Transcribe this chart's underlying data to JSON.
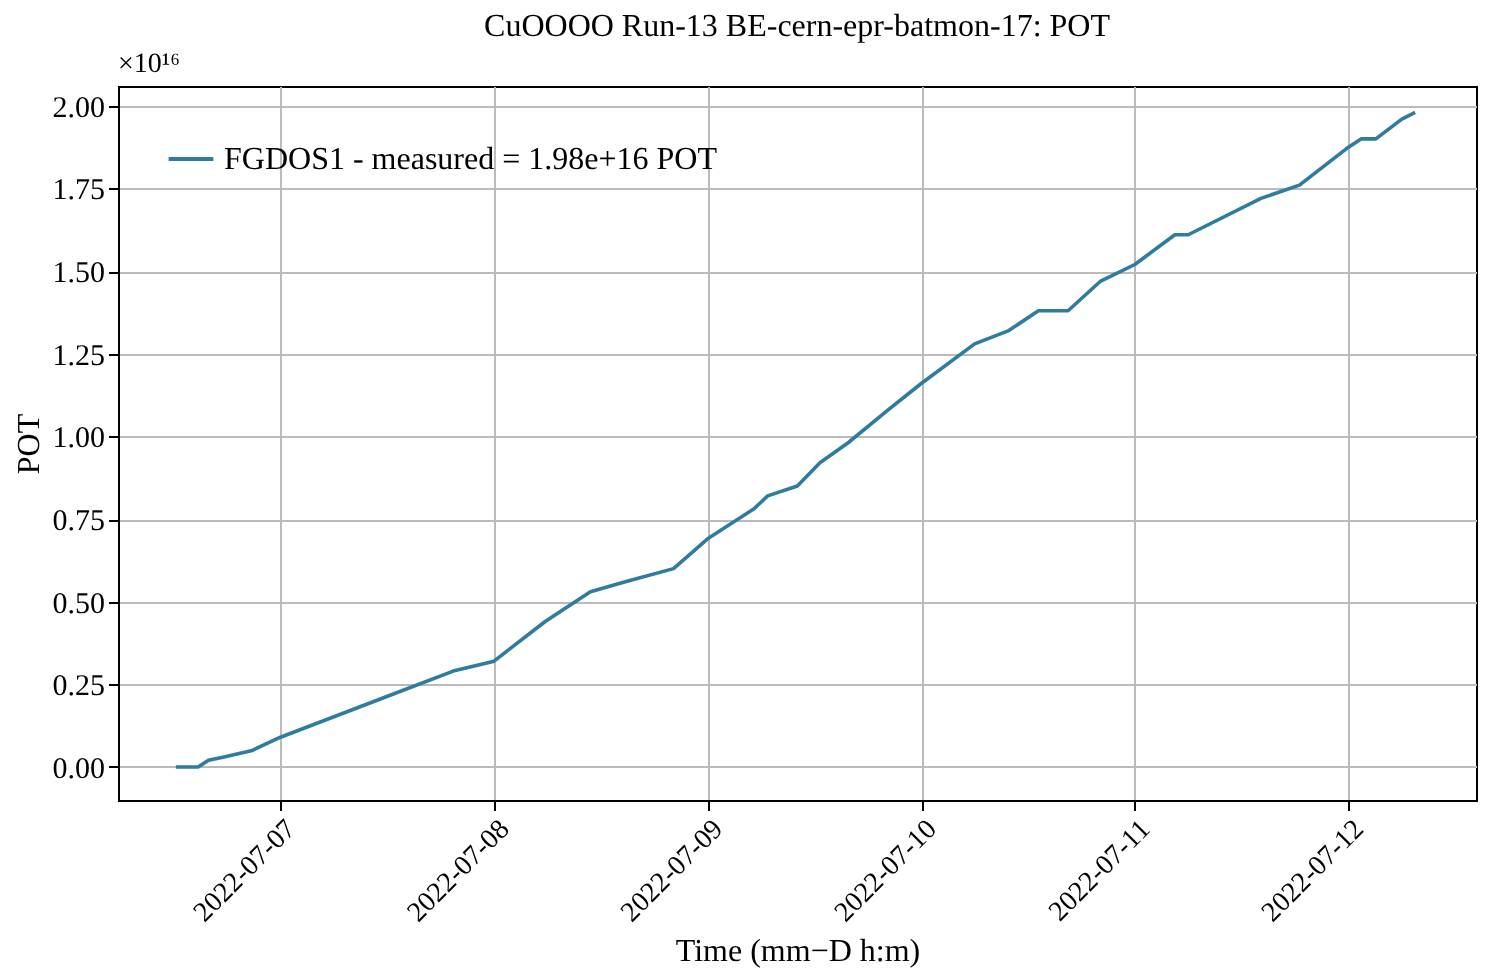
{
  "chart_data": {
    "type": "line",
    "title": "CuOOOO Run-13 BE-cern-epr-batmon-17: POT",
    "xlabel": "Time (mm−D h:m)",
    "ylabel": "POT",
    "annotations": [
      "×10¹⁶"
    ],
    "series": [
      {
        "name": "FGDOS1 - measured = 1.98e+16 POT",
        "color": "#2e7ca0",
        "x": [
          "2022-07-06T12:15",
          "2022-07-06T14:45",
          "2022-07-06T15:55",
          "2022-07-06T17:40",
          "2022-07-06T20:50",
          "2022-07-07T00:00",
          "2022-07-07T12:37",
          "2022-07-07T19:25",
          "2022-07-08T00:00",
          "2022-07-08T05:45",
          "2022-07-08T10:50",
          "2022-07-08T14:45",
          "2022-07-08T20:10",
          "2022-07-09T00:00",
          "2022-07-09T05:10",
          "2022-07-09T06:45",
          "2022-07-09T10:05",
          "2022-07-09T12:37",
          "2022-07-09T15:45",
          "2022-07-09T20:17",
          "2022-07-10T00:00",
          "2022-07-10T06:00",
          "2022-07-10T09:50",
          "2022-07-10T13:10",
          "2022-07-10T16:30",
          "2022-07-10T20:10",
          "2022-07-11T00:00",
          "2022-07-11T04:30",
          "2022-07-11T06:00",
          "2022-07-11T14:10",
          "2022-07-11T18:30",
          "2022-07-11T23:45",
          "2022-07-12T01:25",
          "2022-07-12T03:05",
          "2022-07-12T06:00",
          "2022-07-12T07:30"
        ],
        "values": [
          0.0,
          0.0,
          0.02,
          0.03,
          0.05,
          0.09,
          0.22,
          0.29,
          0.32,
          0.44,
          0.53,
          0.56,
          0.6,
          0.69,
          0.78,
          0.82,
          0.85,
          0.92,
          0.98,
          1.08,
          1.16,
          1.28,
          1.32,
          1.38,
          1.38,
          1.47,
          1.52,
          1.61,
          1.61,
          1.72,
          1.76,
          1.87,
          1.9,
          1.9,
          1.96,
          1.98
        ]
      }
    ],
    "xlim": [
      "2022-07-06T05:45",
      "2022-07-12T14:20"
    ],
    "xticks": [
      "2022-07-07",
      "2022-07-08",
      "2022-07-09",
      "2022-07-10",
      "2022-07-11",
      "2022-07-12"
    ],
    "ylim": [
      -0.1,
      2.06
    ],
    "yticks": [
      {
        "value": 0,
        "label": "0.00"
      },
      {
        "value": 0.25,
        "label": "0.25"
      },
      {
        "value": 0.5,
        "label": "0.50"
      },
      {
        "value": 0.75,
        "label": "0.75"
      },
      {
        "value": 1,
        "label": "1.00"
      },
      {
        "value": 1.25,
        "label": "1.25"
      },
      {
        "value": 1.5,
        "label": "1.50"
      },
      {
        "value": 1.75,
        "label": "1.75"
      },
      {
        "value": 2,
        "label": "2.00"
      }
    ],
    "grid": true,
    "legend": "top left",
    "marker": "none",
    "line_style": "solid"
  }
}
